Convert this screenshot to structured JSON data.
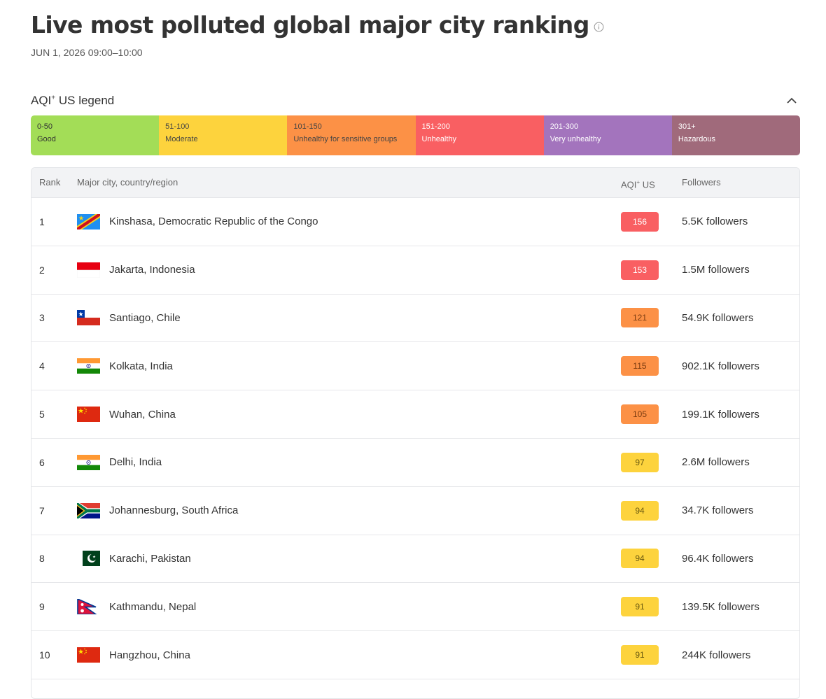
{
  "header": {
    "title": "Live most polluted global major city ranking",
    "subtitle": "JUN 1, 2026 09:00–10:00"
  },
  "legend": {
    "title": "AQI",
    "title_sup": "+",
    "title_suffix": " US legend",
    "segments": [
      {
        "range": "0-50",
        "label": "Good",
        "color": "#a3dd57",
        "text_color": "#333333"
      },
      {
        "range": "51-100",
        "label": "Moderate",
        "color": "#fdd33d",
        "text_color": "#444444"
      },
      {
        "range": "101-150",
        "label": "Unhealthy for sensitive groups",
        "color": "#fc9146",
        "text_color": "#444444"
      },
      {
        "range": "151-200",
        "label": "Unhealthy",
        "color": "#f95f62",
        "text_color": "#ffffff"
      },
      {
        "range": "201-300",
        "label": "Very unhealthy",
        "color": "#a374bd",
        "text_color": "#ffffff"
      },
      {
        "range": "301+",
        "label": "Hazardous",
        "color": "#a06a7b",
        "text_color": "#ffffff"
      }
    ]
  },
  "table": {
    "headers": {
      "rank": "Rank",
      "city": "Major city, country/region",
      "aqi": "AQI",
      "aqi_sup": "+",
      "aqi_suffix": " US",
      "followers": "Followers"
    },
    "rows": [
      {
        "rank": "1",
        "flag": "congo-drc-flag-icon",
        "city": "Kinshasa, Democratic Republic of the Congo",
        "aqi": "156",
        "aqi_color": "#f95f62",
        "aqi_text": "#ffffff",
        "followers": "5.5K followers"
      },
      {
        "rank": "2",
        "flag": "indonesia-flag-icon",
        "city": "Jakarta, Indonesia",
        "aqi": "153",
        "aqi_color": "#f95f62",
        "aqi_text": "#ffffff",
        "followers": "1.5M followers"
      },
      {
        "rank": "3",
        "flag": "chile-flag-icon",
        "city": "Santiago, Chile",
        "aqi": "121",
        "aqi_color": "#fc9146",
        "aqi_text": "#7a3b10",
        "followers": "54.9K followers"
      },
      {
        "rank": "4",
        "flag": "india-flag-icon",
        "city": "Kolkata, India",
        "aqi": "115",
        "aqi_color": "#fc9146",
        "aqi_text": "#7a3b10",
        "followers": "902.1K followers"
      },
      {
        "rank": "5",
        "flag": "china-flag-icon",
        "city": "Wuhan, China",
        "aqi": "105",
        "aqi_color": "#fc9146",
        "aqi_text": "#7a3b10",
        "followers": "199.1K followers"
      },
      {
        "rank": "6",
        "flag": "india-flag-icon",
        "city": "Delhi, India",
        "aqi": "97",
        "aqi_color": "#fdd33d",
        "aqi_text": "#6b5a10",
        "followers": "2.6M followers"
      },
      {
        "rank": "7",
        "flag": "south-africa-flag-icon",
        "city": "Johannesburg, South Africa",
        "aqi": "94",
        "aqi_color": "#fdd33d",
        "aqi_text": "#6b5a10",
        "followers": "34.7K followers"
      },
      {
        "rank": "8",
        "flag": "pakistan-flag-icon",
        "city": "Karachi, Pakistan",
        "aqi": "94",
        "aqi_color": "#fdd33d",
        "aqi_text": "#6b5a10",
        "followers": "96.4K followers"
      },
      {
        "rank": "9",
        "flag": "nepal-flag-icon",
        "city": "Kathmandu, Nepal",
        "aqi": "91",
        "aqi_color": "#fdd33d",
        "aqi_text": "#6b5a10",
        "followers": "139.5K followers"
      },
      {
        "rank": "10",
        "flag": "china-flag-icon",
        "city": "Hangzhou, China",
        "aqi": "91",
        "aqi_color": "#fdd33d",
        "aqi_text": "#6b5a10",
        "followers": "244K followers"
      }
    ]
  }
}
